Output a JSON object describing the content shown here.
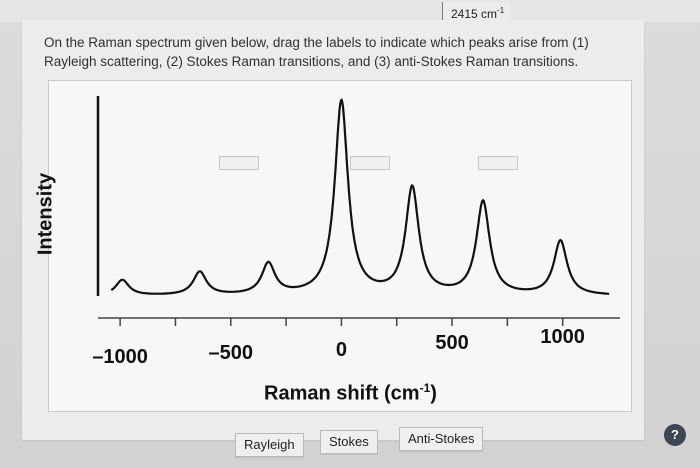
{
  "top_bar": {
    "value": "2415 cm",
    "value_superscript": "-1"
  },
  "question": {
    "text": "On the Raman spectrum given below, drag the labels to indicate which peaks arise from (1) Rayleigh scattering, (2) Stokes Raman transitions, and (3) anti-Stokes Raman transitions."
  },
  "chart": {
    "y_label": "Intensity",
    "x_title_main": "Raman shift (cm",
    "x_title_sup": "-1",
    "x_title_tail": ")",
    "ticks": [
      "–1000",
      "–500",
      "0",
      "500",
      "1000"
    ]
  },
  "chart_data": {
    "type": "line",
    "xlabel": "Raman shift (cm⁻¹)",
    "ylabel": "Intensity",
    "x_ticks": [
      -1000,
      -500,
      0,
      500,
      1000
    ],
    "series": [
      {
        "peaks": [
          {
            "x": -990,
            "relative_intensity": 0.08
          },
          {
            "x": -640,
            "relative_intensity": 0.12
          },
          {
            "x": -330,
            "relative_intensity": 0.16
          },
          {
            "x": 0,
            "relative_intensity": 1.0
          },
          {
            "x": 320,
            "relative_intensity": 0.55
          },
          {
            "x": 640,
            "relative_intensity": 0.48
          },
          {
            "x": 990,
            "relative_intensity": 0.28
          }
        ]
      }
    ],
    "grid": false,
    "legend": "none"
  },
  "drop_targets": [
    {
      "id": "peak-left"
    },
    {
      "id": "peak-center"
    },
    {
      "id": "peak-right"
    }
  ],
  "drag_labels": {
    "rayleigh": "Rayleigh",
    "stokes": "Stokes",
    "anti_stokes": "Anti-Stokes"
  },
  "help": {
    "label": "?"
  },
  "colors": {
    "line": "#111111",
    "help_button": "#3d4651"
  }
}
